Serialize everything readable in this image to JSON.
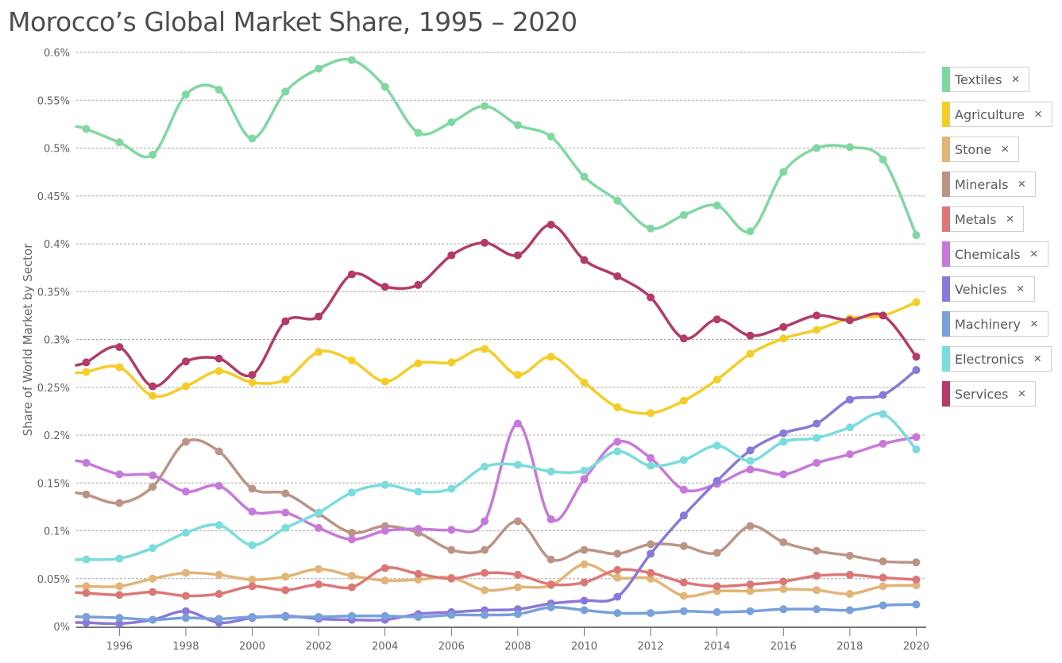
{
  "chart_data": {
    "type": "line",
    "title": "Morocco’s Global Market Share, 1995 – 2020",
    "xlabel": "",
    "ylabel": "Share of World Market by Sector",
    "x": [
      1995,
      1996,
      1997,
      1998,
      1999,
      2000,
      2001,
      2002,
      2003,
      2004,
      2005,
      2006,
      2007,
      2008,
      2009,
      2010,
      2011,
      2012,
      2013,
      2014,
      2015,
      2016,
      2017,
      2018,
      2019,
      2020
    ],
    "x_ticks": [
      "1996",
      "1998",
      "2000",
      "2002",
      "2004",
      "2006",
      "2008",
      "2010",
      "2012",
      "2014",
      "2016",
      "2018",
      "2020"
    ],
    "x_tick_values": [
      1996,
      1998,
      2000,
      2002,
      2004,
      2006,
      2008,
      2010,
      2012,
      2014,
      2016,
      2018,
      2020
    ],
    "xlim": [
      1994.7,
      2020.3
    ],
    "ylim": [
      0,
      0.6
    ],
    "y_ticks": [
      "0%",
      "0.05%",
      "0.1%",
      "0.15%",
      "0.2%",
      "0.25%",
      "0.3%",
      "0.35%",
      "0.4%",
      "0.45%",
      "0.5%",
      "0.55%",
      "0.6%"
    ],
    "y_tick_values": [
      0,
      0.05,
      0.1,
      0.15,
      0.2,
      0.25,
      0.3,
      0.35,
      0.4,
      0.45,
      0.5,
      0.55,
      0.6
    ],
    "grid": true,
    "legend_position": "right",
    "series": [
      {
        "name": "Textiles",
        "color": "#7fd8a2",
        "values": [
          0.52,
          0.506,
          0.493,
          0.556,
          0.561,
          0.51,
          0.559,
          0.583,
          0.592,
          0.564,
          0.516,
          0.527,
          0.544,
          0.524,
          0.512,
          0.47,
          0.445,
          0.416,
          0.43,
          0.44,
          0.413,
          0.475,
          0.5,
          0.501,
          0.488,
          0.409
        ]
      },
      {
        "name": "Agriculture",
        "color": "#f5cd28",
        "values": [
          0.266,
          0.271,
          0.241,
          0.251,
          0.267,
          0.255,
          0.258,
          0.287,
          0.278,
          0.256,
          0.275,
          0.276,
          0.29,
          0.263,
          0.282,
          0.255,
          0.229,
          0.223,
          0.236,
          0.258,
          0.285,
          0.301,
          0.31,
          0.322,
          0.325,
          0.339
        ]
      },
      {
        "name": "Stone",
        "color": "#e1b577",
        "values": [
          0.042,
          0.042,
          0.05,
          0.056,
          0.054,
          0.049,
          0.052,
          0.06,
          0.053,
          0.048,
          0.049,
          0.051,
          0.038,
          0.041,
          0.043,
          0.065,
          0.051,
          0.05,
          0.032,
          0.037,
          0.037,
          0.039,
          0.038,
          0.034,
          0.042,
          0.043
        ]
      },
      {
        "name": "Minerals",
        "color": "#bb9486",
        "values": [
          0.138,
          0.129,
          0.146,
          0.193,
          0.183,
          0.144,
          0.139,
          0.118,
          0.098,
          0.105,
          0.098,
          0.08,
          0.08,
          0.11,
          0.07,
          0.08,
          0.076,
          0.086,
          0.084,
          0.077,
          0.105,
          0.088,
          0.079,
          0.074,
          0.068,
          0.067
        ]
      },
      {
        "name": "Metals",
        "color": "#dd7777",
        "values": [
          0.035,
          0.033,
          0.036,
          0.032,
          0.034,
          0.042,
          0.038,
          0.044,
          0.041,
          0.061,
          0.055,
          0.05,
          0.056,
          0.054,
          0.044,
          0.046,
          0.059,
          0.056,
          0.046,
          0.042,
          0.044,
          0.047,
          0.053,
          0.054,
          0.051,
          0.049
        ]
      },
      {
        "name": "Chemicals",
        "color": "#c878da",
        "values": [
          0.171,
          0.159,
          0.158,
          0.141,
          0.147,
          0.12,
          0.119,
          0.103,
          0.091,
          0.1,
          0.102,
          0.101,
          0.11,
          0.212,
          0.112,
          0.154,
          0.193,
          0.176,
          0.143,
          0.149,
          0.164,
          0.159,
          0.171,
          0.18,
          0.191,
          0.198
        ]
      },
      {
        "name": "Vehicles",
        "color": "#8a79d8",
        "values": [
          0.004,
          0.003,
          0.007,
          0.016,
          0.004,
          0.009,
          0.011,
          0.008,
          0.007,
          0.007,
          0.013,
          0.015,
          0.017,
          0.018,
          0.024,
          0.027,
          0.031,
          0.076,
          0.116,
          0.152,
          0.184,
          0.202,
          0.212,
          0.237,
          0.242,
          0.268
        ]
      },
      {
        "name": "Machinery",
        "color": "#78a0da",
        "values": [
          0.01,
          0.009,
          0.007,
          0.009,
          0.008,
          0.01,
          0.01,
          0.01,
          0.011,
          0.011,
          0.01,
          0.012,
          0.012,
          0.013,
          0.02,
          0.017,
          0.014,
          0.014,
          0.016,
          0.015,
          0.016,
          0.018,
          0.018,
          0.017,
          0.022,
          0.023
        ]
      },
      {
        "name": "Electronics",
        "color": "#7adcdc",
        "values": [
          0.07,
          0.071,
          0.082,
          0.098,
          0.106,
          0.085,
          0.103,
          0.119,
          0.14,
          0.148,
          0.141,
          0.144,
          0.167,
          0.169,
          0.162,
          0.163,
          0.183,
          0.168,
          0.174,
          0.189,
          0.173,
          0.193,
          0.197,
          0.208,
          0.222,
          0.185
        ]
      },
      {
        "name": "Services",
        "color": "#b33a69",
        "values": [
          0.276,
          0.292,
          0.251,
          0.277,
          0.28,
          0.263,
          0.319,
          0.324,
          0.368,
          0.355,
          0.357,
          0.388,
          0.401,
          0.388,
          0.42,
          0.383,
          0.366,
          0.344,
          0.301,
          0.321,
          0.304,
          0.313,
          0.325,
          0.32,
          0.325,
          0.282
        ]
      }
    ]
  },
  "legend": {
    "remove_glyph": "×",
    "items": [
      {
        "label": "Textiles",
        "color": "#7fd8a2"
      },
      {
        "label": "Agriculture",
        "color": "#f5cd28"
      },
      {
        "label": "Stone",
        "color": "#e1b577"
      },
      {
        "label": "Minerals",
        "color": "#bb9486"
      },
      {
        "label": "Metals",
        "color": "#dd7777"
      },
      {
        "label": "Chemicals",
        "color": "#c878da"
      },
      {
        "label": "Vehicles",
        "color": "#8a79d8"
      },
      {
        "label": "Machinery",
        "color": "#78a0da"
      },
      {
        "label": "Electronics",
        "color": "#7adcdc"
      },
      {
        "label": "Services",
        "color": "#b33a69"
      }
    ]
  }
}
